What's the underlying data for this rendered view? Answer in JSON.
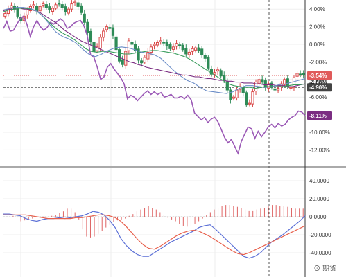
{
  "chart_data": [
    {
      "type": "candlestick-line",
      "yunit": "%",
      "ylim": [
        -14,
        5
      ],
      "ticks": [
        {
          "v": 4,
          "label": "4.00%"
        },
        {
          "v": 2,
          "label": "2.00%"
        },
        {
          "v": 0,
          "label": "0.00%"
        },
        {
          "v": -2,
          "label": "-2.00%"
        },
        {
          "v": -4,
          "label": "-4.00%"
        },
        {
          "v": -6,
          "label": "-6.00%"
        },
        {
          "v": -8,
          "label": "-8.00%"
        },
        {
          "v": -10,
          "label": "-10.00%"
        },
        {
          "v": -12,
          "label": "-12.00%"
        }
      ],
      "candles_close": [
        3.5,
        4.0,
        4.4,
        4.0,
        3.2,
        2.7,
        3.2,
        3.9,
        4.3,
        4.5,
        3.8,
        4.3,
        4.6,
        4.2,
        3.9,
        4.1,
        4.5,
        4.6,
        4.2,
        3.7,
        4.0,
        4.6,
        4.8,
        4.3,
        3.6,
        2.5,
        1.3,
        0.3,
        -0.8,
        -0.3,
        0.8,
        1.5,
        2.0,
        1.8,
        1.0,
        -0.6,
        -1.9,
        -2.3,
        -0.8,
        0.4,
        0.0,
        -0.7,
        -1.8,
        -2.1,
        -1.5,
        -0.9,
        -0.3,
        0.0,
        0.2,
        0.4,
        0.2,
        -0.2,
        -0.5,
        -0.3,
        0.1,
        -0.1,
        -0.6,
        -1.1,
        -0.9,
        -0.5,
        -0.4,
        -0.7,
        -1.2,
        -1.6,
        -2.7,
        -3.4,
        -3.2,
        -2.9,
        -3.6,
        -4.1,
        -5.2,
        -6.3,
        -6.0,
        -5.2,
        -4.8,
        -5.5,
        -6.9,
        -6.7,
        -5.4,
        -4.3,
        -4.0,
        -4.3,
        -4.9,
        -4.5,
        -4.9,
        -5.2,
        -5.0,
        -4.5,
        -4.0,
        -4.8,
        -4.9,
        -3.8,
        -3.3,
        -3.4,
        -3.5
      ],
      "lines": [
        {
          "name": "",
          "color": "#9b59b6",
          "values": [
            1.8,
            2.6,
            1.5,
            1.6,
            2.3,
            2.9,
            3.2,
            2.3,
            0.9,
            2.0,
            2.7,
            2.0,
            1.6,
            1.9,
            2.5,
            2.3,
            2.6,
            2.9,
            2.6,
            1.8,
            2.0,
            2.4,
            2.6,
            2.7,
            2.1,
            1.0,
            -1.2,
            -1.5,
            -2.6,
            -4.0,
            -3.7,
            -2.6,
            -2.2,
            -2.8,
            -3.3,
            -3.8,
            -4.5,
            -6.2,
            -5.8,
            -6.0,
            -6.4,
            -6.0,
            -5.6,
            -5.3,
            -5.7,
            -5.4,
            -5.7,
            -5.5,
            -6.0,
            -5.9,
            -5.7,
            -6.1,
            -6.1,
            -5.9,
            -6.2,
            -5.8,
            -6.3,
            -7.8,
            -8.2,
            -8.6,
            -8.3,
            -8.9,
            -8.5,
            -8.3,
            -8.8,
            -9.7,
            -10.6,
            -11.2,
            -10.8,
            -11.6,
            -12.4,
            -11.0,
            -10.2,
            -9.4,
            -9.6,
            -10.7,
            -9.9,
            -10.5,
            -10.0,
            -9.4,
            -9.1,
            -9.5,
            -9.0,
            -9.3,
            -9.1,
            -8.6,
            -8.3,
            -8.1,
            -7.6,
            -7.7,
            -8.1
          ]
        },
        {
          "name": "",
          "color": "#7b2d82",
          "values": [
            3.8,
            4.0,
            4.0,
            4.0,
            4.1,
            4.0,
            4.0,
            3.9,
            3.8,
            3.6,
            3.3,
            3.0,
            2.7,
            2.4,
            2.0,
            1.6,
            1.3,
            1.0,
            0.7,
            0.4,
            0.2,
            0.0,
            -0.2,
            -0.4,
            -0.6,
            -0.8,
            -1.0,
            -1.2,
            -1.4,
            -1.6,
            -1.8,
            -2.0,
            -2.1,
            -2.3,
            -2.4,
            -2.6,
            -2.7,
            -2.8,
            -2.9,
            -3.0,
            -3.1,
            -3.2,
            -3.3,
            -3.4,
            -3.5,
            -3.5,
            -3.6,
            -3.7,
            -3.7,
            -3.8,
            -3.9,
            -3.9,
            -4.0,
            -4.1,
            -4.1,
            -4.2,
            -4.2,
            -4.3,
            -4.3,
            -4.4,
            -4.4,
            -4.4,
            -4.5,
            -4.5,
            -4.6,
            -4.6,
            -4.6,
            -4.7,
            -4.7,
            -4.7,
            -4.8,
            -4.8,
            -4.7,
            -4.6,
            -4.5
          ]
        },
        {
          "name": "",
          "color": "#3a9d5d",
          "values": [
            3.7,
            3.9,
            4.0,
            4.1,
            4.1,
            4.0,
            3.8,
            3.3,
            2.7,
            2.1,
            1.6,
            1.2,
            0.9,
            0.5,
            0.0,
            -0.5,
            -0.8,
            -0.9,
            -0.8,
            -0.8,
            -0.9,
            -1.0,
            -1.1,
            -1.1,
            -1.0,
            -0.9,
            -0.8,
            -0.7,
            -0.7,
            -0.8,
            -0.9,
            -1.0,
            -1.2,
            -1.4,
            -1.7,
            -2.1,
            -2.5,
            -2.9,
            -3.3,
            -3.7,
            -4.1,
            -4.5,
            -4.7,
            -4.8,
            -4.9,
            -4.9,
            -5.0,
            -4.9,
            -4.8,
            -4.8,
            -4.8,
            -4.8,
            -4.7,
            -4.6,
            -4.6,
            -4.5
          ]
        },
        {
          "name": "",
          "color": "#6a8cc7",
          "values": [
            3.9,
            4.1,
            4.2,
            4.2,
            4.1,
            3.8,
            3.2,
            2.3,
            1.4,
            0.9,
            0.6,
            0.2,
            -0.5,
            -1.1,
            -1.4,
            -1.1,
            -0.7,
            -0.4,
            -0.3,
            -0.4,
            -0.6,
            -0.9,
            -1.0,
            -1.2,
            -1.6,
            -2.3,
            -3.0,
            -3.6,
            -4.1,
            -4.4,
            -4.9,
            -5.3,
            -5.4,
            -5.5,
            -5.6,
            -5.4,
            -5.0,
            -4.7,
            -4.7,
            -4.8,
            -4.9,
            -4.8,
            -4.6,
            -4.5,
            -4.3,
            -4.1,
            -3.9
          ]
        }
      ],
      "badges": [
        {
          "label": "-3.54%",
          "v": -3.54,
          "color": "#e05a5a"
        },
        {
          "label": "-4.90%",
          "v": -4.9,
          "color": "#444444"
        },
        {
          "label": "-8.11%",
          "v": -8.11,
          "color": "#7b2d82"
        }
      ],
      "partial_label": "-4.00%"
    },
    {
      "type": "macd",
      "ylim": [
        -50,
        50
      ],
      "ticks": [
        {
          "v": 40,
          "label": "40.0000"
        },
        {
          "v": 20,
          "label": "20.0000"
        },
        {
          "v": 0,
          "label": "0.0000"
        },
        {
          "v": -20,
          "label": "-20.0000"
        },
        {
          "v": -40,
          "label": "-40.0000"
        }
      ],
      "dif": [
        3,
        3,
        2,
        1,
        -2,
        -4,
        -5,
        -3,
        -2,
        -2,
        -1,
        -2,
        -1,
        0,
        1,
        3,
        6,
        5,
        2,
        -4,
        -12,
        -24,
        -32,
        -38,
        -42,
        -44,
        -44,
        -40,
        -36,
        -32,
        -28,
        -25,
        -22,
        -19,
        -16,
        -12,
        -10,
        -9,
        -14,
        -20,
        -26,
        -32,
        -38,
        -44,
        -46,
        -44,
        -40,
        -34,
        -28,
        -24,
        -20,
        -15,
        -10,
        -5,
        1
      ],
      "dea": [
        2,
        2,
        2,
        2,
        2,
        1,
        0,
        -1,
        -2,
        -2,
        -2,
        -2,
        -2,
        -1,
        -1,
        0,
        1,
        2,
        2,
        1,
        -1,
        -5,
        -11,
        -18,
        -25,
        -31,
        -35,
        -36,
        -33,
        -29,
        -25,
        -21,
        -18,
        -16,
        -15,
        -16,
        -19,
        -22,
        -26,
        -30,
        -34,
        -38,
        -41,
        -42,
        -40,
        -37,
        -34,
        -31,
        -28,
        -25,
        -22,
        -19,
        -16,
        -13,
        -10
      ],
      "hist": [
        0,
        0,
        1,
        -2,
        -5,
        -4,
        -3,
        -2,
        0,
        0,
        1,
        0,
        1,
        2,
        4,
        6,
        9,
        9,
        5,
        -3,
        -14,
        -22,
        -23,
        -22,
        -19,
        -16,
        -12,
        -9,
        -6,
        -4,
        -3,
        -2,
        1,
        3,
        6,
        8,
        10,
        12,
        10,
        8,
        5,
        2,
        -1,
        -3,
        -5,
        -8,
        -10,
        -11,
        -10,
        -8,
        -5,
        -2,
        2,
        5,
        8,
        10,
        12,
        13,
        13,
        12,
        11,
        10,
        8,
        7,
        7,
        8,
        9,
        10,
        12,
        13,
        13,
        12,
        12,
        11,
        10,
        9,
        9,
        9
      ]
    }
  ],
  "watermark": "⊙ 期货"
}
